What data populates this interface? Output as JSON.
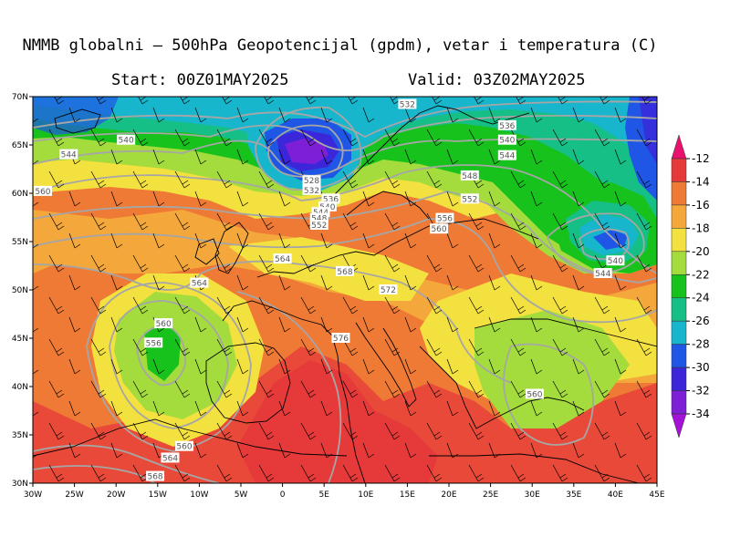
{
  "title": "NMMB globalni — 500hPa Geopotencijal (gpdm), vetar i temperatura (C)",
  "start": "Start: 00Z01MAY2025",
  "valid": "Valid: 03Z02MAY2025",
  "map": {
    "lon_range": [
      -30,
      45
    ],
    "lat_range": [
      30,
      70
    ],
    "lon_ticks": [
      "30W",
      "25W",
      "20W",
      "15W",
      "10W",
      "5W",
      "0",
      "5E",
      "10E",
      "15E",
      "20E",
      "25E",
      "30E",
      "35E",
      "40E",
      "45E"
    ],
    "lat_ticks": [
      "30N",
      "35N",
      "40N",
      "45N",
      "50N",
      "55N",
      "60N",
      "65N",
      "70N"
    ]
  },
  "colorbar": {
    "labels": [
      "-12",
      "-14",
      "-16",
      "-18",
      "-20",
      "-22",
      "-24",
      "-26",
      "-28",
      "-30",
      "-32",
      "-34"
    ],
    "colors": [
      "#e8126e",
      "#e5393a",
      "#ee7a35",
      "#f4a73a",
      "#f3e13f",
      "#a3dc3c",
      "#18c21c",
      "#15bf86",
      "#18b6cc",
      "#1f56e6",
      "#3b26d9",
      "#7d1fd6",
      "#a412d8"
    ]
  },
  "contour_labels": [
    {
      "text": "532",
      "lon": 15.0,
      "lat": 69.2
    },
    {
      "text": "536",
      "lon": 27.0,
      "lat": 67.0
    },
    {
      "text": "540",
      "lon": 27.0,
      "lat": 65.5
    },
    {
      "text": "544",
      "lon": 27.0,
      "lat": 63.9
    },
    {
      "text": "548",
      "lon": 22.5,
      "lat": 61.8
    },
    {
      "text": "552",
      "lon": 22.5,
      "lat": 59.4
    },
    {
      "text": "556",
      "lon": 19.5,
      "lat": 57.4
    },
    {
      "text": "560",
      "lon": 18.8,
      "lat": 56.3
    },
    {
      "text": "540",
      "lon": -18.8,
      "lat": 65.5
    },
    {
      "text": "544",
      "lon": -25.7,
      "lat": 64.0
    },
    {
      "text": "560",
      "lon": -28.8,
      "lat": 60.2
    },
    {
      "text": "528",
      "lon": 3.5,
      "lat": 61.3
    },
    {
      "text": "532",
      "lon": 3.5,
      "lat": 60.3
    },
    {
      "text": "536",
      "lon": 5.8,
      "lat": 59.4
    },
    {
      "text": "540",
      "lon": 5.4,
      "lat": 58.6
    },
    {
      "text": "544",
      "lon": 4.6,
      "lat": 58.0
    },
    {
      "text": "548",
      "lon": 4.4,
      "lat": 57.4
    },
    {
      "text": "552",
      "lon": 4.4,
      "lat": 56.7
    },
    {
      "text": "564",
      "lon": 0.0,
      "lat": 53.2
    },
    {
      "text": "568",
      "lon": 7.5,
      "lat": 51.9
    },
    {
      "text": "564",
      "lon": -10.0,
      "lat": 50.7
    },
    {
      "text": "572",
      "lon": 12.7,
      "lat": 50.0
    },
    {
      "text": "560",
      "lon": -14.3,
      "lat": 46.5
    },
    {
      "text": "556",
      "lon": -15.5,
      "lat": 44.5
    },
    {
      "text": "576",
      "lon": 7.0,
      "lat": 45.0
    },
    {
      "text": "560",
      "lon": 30.3,
      "lat": 39.2
    },
    {
      "text": "560",
      "lon": -11.8,
      "lat": 33.8
    },
    {
      "text": "564",
      "lon": -13.5,
      "lat": 32.6
    },
    {
      "text": "568",
      "lon": -15.3,
      "lat": 30.7
    },
    {
      "text": "540",
      "lon": 40.0,
      "lat": 53.0
    },
    {
      "text": "544",
      "lon": 38.5,
      "lat": 51.7
    }
  ]
}
